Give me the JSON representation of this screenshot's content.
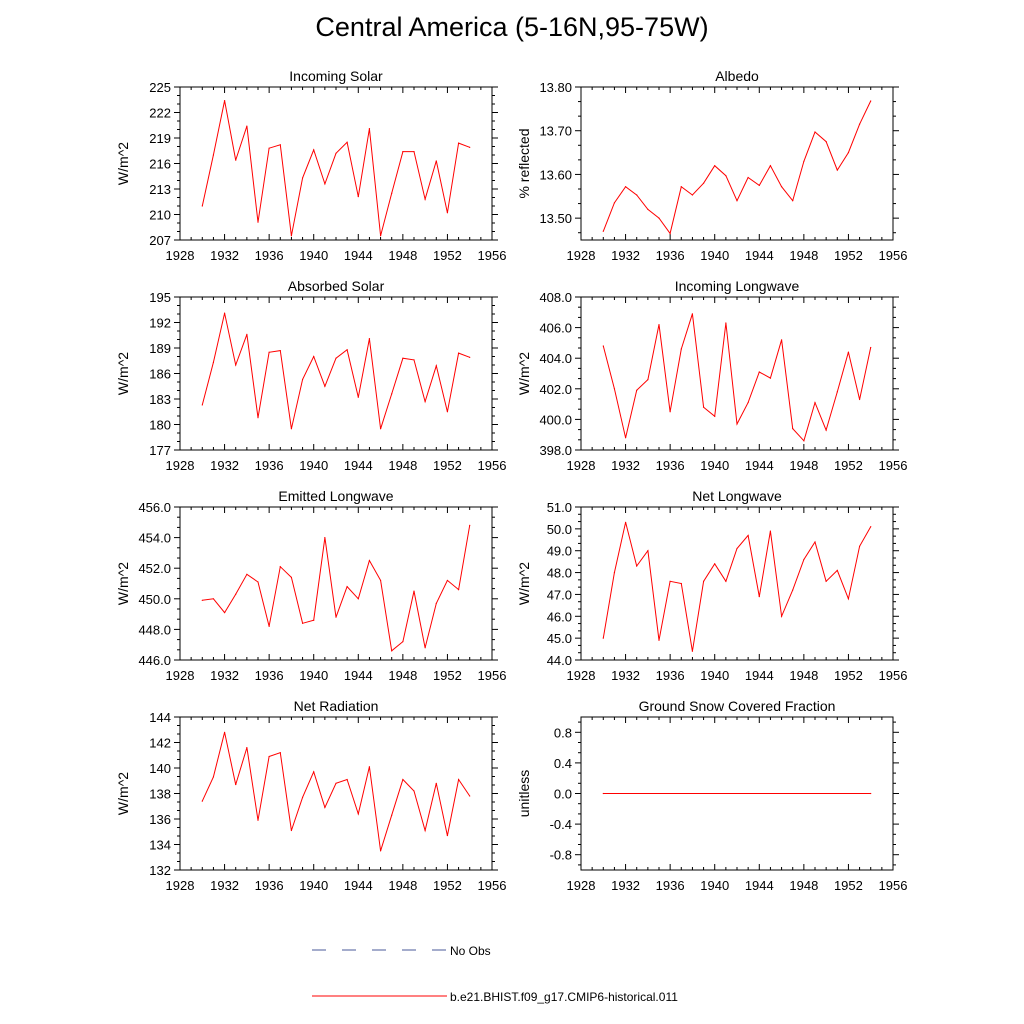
{
  "page": {
    "title": "Central America (5-16N,95-75W)"
  },
  "colors": {
    "series": "#ff0000",
    "obs": "#4a5a9a",
    "axis": "#000000"
  },
  "legend": {
    "entries": [
      {
        "label": "No Obs",
        "style": "dashed",
        "color": "#4a5a9a"
      },
      {
        "label": "b.e21.BHIST.f09_g17.CMIP6-historical.011",
        "style": "solid",
        "color": "#ff0000"
      }
    ]
  },
  "chart_data": [
    {
      "type": "line",
      "title": "Incoming Solar",
      "ylabel": "W/m^2",
      "xlim": [
        1928,
        1956
      ],
      "ylim": [
        207,
        225
      ],
      "xticks": [
        1928,
        1932,
        1936,
        1940,
        1944,
        1948,
        1952,
        1956
      ],
      "xtick_labels": [
        "1928",
        "1932",
        "1936",
        "1940",
        "1944",
        "1948",
        "1952",
        "1956"
      ],
      "yticks": [
        207,
        210,
        213,
        216,
        219,
        222,
        225
      ],
      "ytick_labels": [
        "207",
        "210",
        "213",
        "216",
        "219",
        "222",
        "225"
      ],
      "series": [
        {
          "name": "b.e21.BHIST.f09_g17.CMIP6-historical.011",
          "color": "#ff0000",
          "x": [
            1930,
            1931,
            1932,
            1933,
            1934,
            1935,
            1936,
            1937,
            1938,
            1939,
            1940,
            1941,
            1942,
            1943,
            1944,
            1945,
            1946,
            1947,
            1948,
            1949,
            1950,
            1951,
            1952,
            1953,
            1954
          ],
          "y": [
            211.0,
            217.0,
            223.4,
            216.4,
            220.4,
            209.1,
            217.8,
            218.2,
            207.5,
            214.3,
            217.6,
            213.6,
            217.2,
            218.5,
            212.1,
            220.1,
            207.5,
            212.5,
            217.4,
            217.4,
            211.8,
            216.3,
            210.2,
            218.4,
            217.9
          ]
        }
      ]
    },
    {
      "type": "line",
      "title": "Albedo",
      "ylabel": "% reflected",
      "xlim": [
        1928,
        1956
      ],
      "ylim": [
        13.45,
        13.8
      ],
      "xticks": [
        1928,
        1932,
        1936,
        1940,
        1944,
        1948,
        1952,
        1956
      ],
      "xtick_labels": [
        "1928",
        "1932",
        "1936",
        "1940",
        "1944",
        "1948",
        "1952",
        "1956"
      ],
      "yticks": [
        13.5,
        13.6,
        13.7,
        13.8
      ],
      "ytick_labels": [
        "13.50",
        "13.60",
        "13.70",
        "13.80"
      ],
      "series": [
        {
          "name": "b.e21.BHIST.f09_g17.CMIP6-historical.011",
          "color": "#ff0000",
          "x": [
            1930,
            1931,
            1932,
            1933,
            1934,
            1935,
            1936,
            1937,
            1938,
            1939,
            1940,
            1941,
            1942,
            1943,
            1944,
            1945,
            1946,
            1947,
            1948,
            1949,
            1950,
            1951,
            1952,
            1953,
            1954
          ],
          "y": [
            13.47,
            13.535,
            13.572,
            13.553,
            13.52,
            13.5,
            13.465,
            13.572,
            13.553,
            13.58,
            13.62,
            13.597,
            13.54,
            13.593,
            13.575,
            13.62,
            13.572,
            13.54,
            13.63,
            13.697,
            13.675,
            13.61,
            13.65,
            13.715,
            13.768
          ]
        }
      ]
    },
    {
      "type": "line",
      "title": "Absorbed Solar",
      "ylabel": "W/m^2",
      "xlim": [
        1928,
        1956
      ],
      "ylim": [
        177,
        195
      ],
      "xticks": [
        1928,
        1932,
        1936,
        1940,
        1944,
        1948,
        1952,
        1956
      ],
      "xtick_labels": [
        "1928",
        "1932",
        "1936",
        "1940",
        "1944",
        "1948",
        "1952",
        "1956"
      ],
      "yticks": [
        177,
        180,
        183,
        186,
        189,
        192,
        195
      ],
      "ytick_labels": [
        "177",
        "180",
        "183",
        "186",
        "189",
        "192",
        "195"
      ],
      "series": [
        {
          "name": "b.e21.BHIST.f09_g17.CMIP6-historical.011",
          "color": "#ff0000",
          "x": [
            1930,
            1931,
            1932,
            1933,
            1934,
            1935,
            1936,
            1937,
            1938,
            1939,
            1940,
            1941,
            1942,
            1943,
            1944,
            1945,
            1946,
            1947,
            1948,
            1949,
            1950,
            1951,
            1952,
            1953,
            1954
          ],
          "y": [
            182.3,
            187.3,
            193.1,
            187.0,
            190.6,
            180.8,
            188.5,
            188.7,
            179.5,
            185.3,
            188.0,
            184.5,
            187.8,
            188.8,
            183.2,
            190.1,
            179.5,
            183.6,
            187.8,
            187.6,
            182.7,
            186.9,
            181.5,
            188.4,
            187.9
          ]
        }
      ]
    },
    {
      "type": "line",
      "title": "Incoming Longwave",
      "ylabel": "W/m^2",
      "xlim": [
        1928,
        1956
      ],
      "ylim": [
        398.0,
        408.0
      ],
      "xticks": [
        1928,
        1932,
        1936,
        1940,
        1944,
        1948,
        1952,
        1956
      ],
      "xtick_labels": [
        "1928",
        "1932",
        "1936",
        "1940",
        "1944",
        "1948",
        "1952",
        "1956"
      ],
      "yticks": [
        398.0,
        400.0,
        402.0,
        404.0,
        406.0,
        408.0
      ],
      "ytick_labels": [
        "398.0",
        "400.0",
        "402.0",
        "404.0",
        "406.0",
        "408.0"
      ],
      "series": [
        {
          "name": "b.e21.BHIST.f09_g17.CMIP6-historical.011",
          "color": "#ff0000",
          "x": [
            1930,
            1931,
            1932,
            1933,
            1934,
            1935,
            1936,
            1937,
            1938,
            1939,
            1940,
            1941,
            1942,
            1943,
            1944,
            1945,
            1946,
            1947,
            1948,
            1949,
            1950,
            1951,
            1952,
            1953,
            1954
          ],
          "y": [
            404.8,
            402.0,
            398.8,
            401.9,
            402.6,
            406.2,
            400.5,
            404.6,
            406.9,
            400.8,
            400.2,
            406.3,
            399.7,
            401.1,
            403.1,
            402.7,
            405.2,
            399.4,
            398.6,
            401.1,
            399.3,
            401.8,
            404.4,
            401.3,
            404.7
          ]
        }
      ]
    },
    {
      "type": "line",
      "title": "Emitted Longwave",
      "ylabel": "W/m^2",
      "xlim": [
        1928,
        1956
      ],
      "ylim": [
        446.0,
        456.0
      ],
      "xticks": [
        1928,
        1932,
        1936,
        1940,
        1944,
        1948,
        1952,
        1956
      ],
      "xtick_labels": [
        "1928",
        "1932",
        "1936",
        "1940",
        "1944",
        "1948",
        "1952",
        "1956"
      ],
      "yticks": [
        446.0,
        448.0,
        450.0,
        452.0,
        454.0,
        456.0
      ],
      "ytick_labels": [
        "446.0",
        "448.0",
        "450.0",
        "452.0",
        "454.0",
        "456.0"
      ],
      "series": [
        {
          "name": "b.e21.BHIST.f09_g17.CMIP6-historical.011",
          "color": "#ff0000",
          "x": [
            1930,
            1931,
            1932,
            1933,
            1934,
            1935,
            1936,
            1937,
            1938,
            1939,
            1940,
            1941,
            1942,
            1943,
            1944,
            1945,
            1946,
            1947,
            1948,
            1949,
            1950,
            1951,
            1952,
            1953,
            1954
          ],
          "y": [
            449.9,
            450.0,
            449.1,
            450.3,
            451.6,
            451.1,
            448.2,
            452.1,
            451.4,
            448.4,
            448.6,
            454.0,
            448.8,
            450.8,
            450.0,
            452.5,
            451.2,
            446.6,
            447.2,
            450.5,
            446.8,
            449.7,
            451.2,
            450.6,
            454.8
          ]
        }
      ]
    },
    {
      "type": "line",
      "title": "Net Longwave",
      "ylabel": "W/m^2",
      "xlim": [
        1928,
        1956
      ],
      "ylim": [
        44.0,
        51.0
      ],
      "xticks": [
        1928,
        1932,
        1936,
        1940,
        1944,
        1948,
        1952,
        1956
      ],
      "xtick_labels": [
        "1928",
        "1932",
        "1936",
        "1940",
        "1944",
        "1948",
        "1952",
        "1956"
      ],
      "yticks": [
        44.0,
        45.0,
        46.0,
        47.0,
        48.0,
        49.0,
        50.0,
        51.0
      ],
      "ytick_labels": [
        "44.0",
        "45.0",
        "46.0",
        "47.0",
        "48.0",
        "49.0",
        "50.0",
        "51.0"
      ],
      "series": [
        {
          "name": "b.e21.BHIST.f09_g17.CMIP6-historical.011",
          "color": "#ff0000",
          "x": [
            1930,
            1931,
            1932,
            1933,
            1934,
            1935,
            1936,
            1937,
            1938,
            1939,
            1940,
            1941,
            1942,
            1943,
            1944,
            1945,
            1946,
            1947,
            1948,
            1949,
            1950,
            1951,
            1952,
            1953,
            1954
          ],
          "y": [
            45.0,
            48.0,
            50.3,
            48.3,
            49.0,
            44.9,
            47.6,
            47.5,
            44.4,
            47.6,
            48.4,
            47.6,
            49.1,
            49.7,
            46.9,
            49.9,
            46.0,
            47.2,
            48.6,
            49.4,
            47.6,
            48.1,
            46.8,
            49.2,
            50.1
          ]
        }
      ]
    },
    {
      "type": "line",
      "title": "Net Radiation",
      "ylabel": "W/m^2",
      "xlim": [
        1928,
        1956
      ],
      "ylim": [
        132,
        144
      ],
      "xticks": [
        1928,
        1932,
        1936,
        1940,
        1944,
        1948,
        1952,
        1956
      ],
      "xtick_labels": [
        "1928",
        "1932",
        "1936",
        "1940",
        "1944",
        "1948",
        "1952",
        "1956"
      ],
      "yticks": [
        132,
        134,
        136,
        138,
        140,
        142,
        144
      ],
      "ytick_labels": [
        "132",
        "134",
        "136",
        "138",
        "140",
        "142",
        "144"
      ],
      "series": [
        {
          "name": "b.e21.BHIST.f09_g17.CMIP6-historical.011",
          "color": "#ff0000",
          "x": [
            1930,
            1931,
            1932,
            1933,
            1934,
            1935,
            1936,
            1937,
            1938,
            1939,
            1940,
            1941,
            1942,
            1943,
            1944,
            1945,
            1946,
            1947,
            1948,
            1949,
            1950,
            1951,
            1952,
            1953,
            1954
          ],
          "y": [
            137.4,
            139.3,
            142.8,
            138.7,
            141.6,
            135.9,
            140.9,
            141.2,
            135.1,
            137.7,
            139.7,
            136.9,
            138.8,
            139.1,
            136.4,
            140.1,
            133.5,
            136.3,
            139.1,
            138.2,
            135.1,
            138.8,
            134.7,
            139.1,
            137.8
          ]
        }
      ]
    },
    {
      "type": "line",
      "title": "Ground Snow Covered Fraction",
      "ylabel": "unitless",
      "xlim": [
        1928,
        1956
      ],
      "ylim": [
        -1.0,
        1.0
      ],
      "xticks": [
        1928,
        1932,
        1936,
        1940,
        1944,
        1948,
        1952,
        1956
      ],
      "xtick_labels": [
        "1928",
        "1932",
        "1936",
        "1940",
        "1944",
        "1948",
        "1952",
        "1956"
      ],
      "yticks": [
        -0.8,
        -0.4,
        0.0,
        0.4,
        0.8
      ],
      "ytick_labels": [
        "-0.8",
        "-0.4",
        "0.0",
        "0.4",
        "0.8"
      ],
      "series": [
        {
          "name": "b.e21.BHIST.f09_g17.CMIP6-historical.011",
          "color": "#ff0000",
          "x": [
            1930,
            1954
          ],
          "y": [
            0.0,
            0.0
          ]
        }
      ]
    }
  ]
}
